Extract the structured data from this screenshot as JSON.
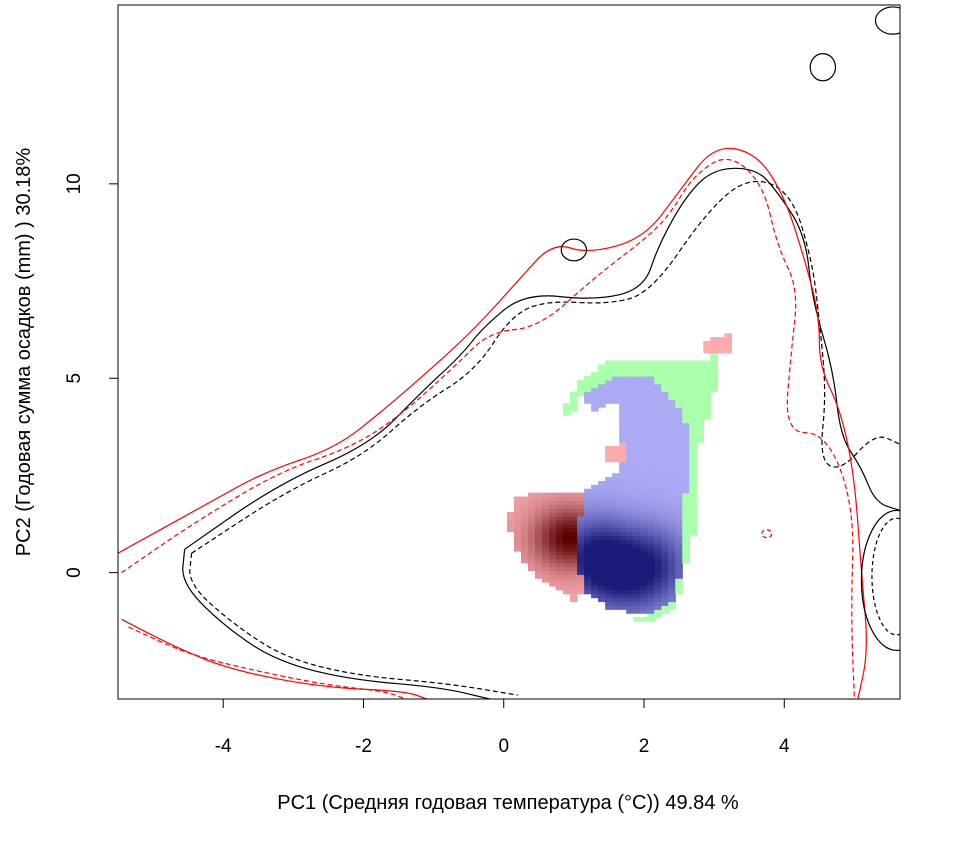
{
  "chart_data": {
    "type": "contour_density",
    "xlabel": "PC1 (Средняя годовая температура (°C)) 49.84 %",
    "ylabel": "PC2 (Годовая сумма осадков  (mm) ) 30.18%",
    "xlim": [
      -5.5,
      5.65
    ],
    "ylim": [
      -3.25,
      14.6
    ],
    "x_ticks": [
      -4,
      -2,
      0,
      2,
      4
    ],
    "y_ticks": [
      0,
      5,
      10
    ],
    "grid": false,
    "legend": "none",
    "colors": {
      "niche_a": "#0000ff",
      "niche_b": "#ff0000",
      "overlap": "#7a0000",
      "unique_a": "#aaffaa",
      "unique_b": "#ffaaaa",
      "envelope_a": "#000000",
      "envelope_b": "#ff0000"
    },
    "blue_density_peaks": [
      {
        "x": 1.25,
        "y": 0.45,
        "weight": 1.0
      },
      {
        "x": 2.2,
        "y": 0.2,
        "weight": 0.8
      },
      {
        "x": 1.7,
        "y": -0.15,
        "weight": 0.6
      }
    ],
    "red_density_peak": {
      "x": 0.95,
      "y": 0.9,
      "weight": 1.0
    },
    "envelopes": [
      {
        "series": "a",
        "style": "solid",
        "points": [
          [
            -4.55,
            0.6
          ],
          [
            -3.2,
            2.3
          ],
          [
            -1.9,
            3.3
          ],
          [
            -1.2,
            4.6
          ],
          [
            -0.6,
            5.6
          ],
          [
            -0.3,
            6.3
          ],
          [
            0.3,
            7.2
          ],
          [
            1.3,
            7.0
          ],
          [
            2.0,
            7.3
          ],
          [
            2.2,
            8.4
          ],
          [
            2.6,
            9.7
          ],
          [
            3.0,
            10.4
          ],
          [
            3.6,
            10.4
          ],
          [
            3.9,
            9.8
          ],
          [
            4.3,
            8.7
          ],
          [
            4.4,
            7.0
          ],
          [
            4.7,
            5.2
          ],
          [
            4.8,
            3.5
          ],
          [
            5.1,
            2.7
          ],
          [
            5.3,
            1.8
          ],
          [
            5.65,
            1.6
          ]
        ]
      },
      {
        "series": "a",
        "style": "solid",
        "points": [
          [
            -4.55,
            0.6
          ],
          [
            -4.6,
            -0.3
          ],
          [
            -3.9,
            -1.5
          ],
          [
            -3.2,
            -2.3
          ],
          [
            -2.2,
            -2.75
          ],
          [
            -0.9,
            -2.95
          ],
          [
            -0.2,
            -3.25
          ]
        ]
      },
      {
        "series": "a",
        "style": "dashed",
        "points": [
          [
            -4.45,
            0.5
          ],
          [
            -3.1,
            2.1
          ],
          [
            -2.0,
            3.0
          ],
          [
            -1.2,
            4.3
          ],
          [
            -0.4,
            5.2
          ],
          [
            0.1,
            6.6
          ],
          [
            0.6,
            7.0
          ],
          [
            1.5,
            6.9
          ],
          [
            2.1,
            7.2
          ],
          [
            2.9,
            9.3
          ],
          [
            3.5,
            10.2
          ],
          [
            4.1,
            9.8
          ],
          [
            4.4,
            8.0
          ],
          [
            4.5,
            6.5
          ],
          [
            4.6,
            4.6
          ],
          [
            4.5,
            2.9
          ],
          [
            4.8,
            2.6
          ],
          [
            5.3,
            3.6
          ],
          [
            5.65,
            3.3
          ]
        ]
      },
      {
        "series": "a",
        "style": "dashed",
        "points": [
          [
            -4.45,
            0.5
          ],
          [
            -4.5,
            -0.3
          ],
          [
            -3.8,
            -1.4
          ],
          [
            -3.1,
            -2.2
          ],
          [
            -2.1,
            -2.65
          ],
          [
            -0.8,
            -2.85
          ],
          [
            0.2,
            -3.15
          ]
        ]
      },
      {
        "series": "b",
        "style": "solid",
        "points": [
          [
            -5.5,
            0.5
          ],
          [
            -4.2,
            1.8
          ],
          [
            -3.4,
            2.6
          ],
          [
            -2.4,
            3.2
          ],
          [
            -1.7,
            4.2
          ],
          [
            -1.0,
            5.3
          ],
          [
            -0.4,
            6.3
          ],
          [
            0.2,
            7.5
          ],
          [
            0.7,
            8.5
          ],
          [
            1.2,
            8.2
          ],
          [
            2.0,
            8.6
          ],
          [
            2.5,
            9.8
          ],
          [
            3.0,
            11.0
          ],
          [
            3.6,
            10.8
          ],
          [
            4.0,
            9.7
          ],
          [
            4.3,
            8.0
          ],
          [
            4.5,
            6.6
          ],
          [
            4.5,
            5.3
          ],
          [
            4.8,
            4.2
          ],
          [
            5.0,
            2.5
          ],
          [
            5.1,
            0.0
          ],
          [
            5.2,
            -2.0
          ],
          [
            5.05,
            -3.25
          ]
        ]
      },
      {
        "series": "b",
        "style": "solid",
        "points": [
          [
            -5.45,
            -1.2
          ],
          [
            -4.7,
            -1.9
          ],
          [
            -3.9,
            -2.5
          ],
          [
            -2.6,
            -2.95
          ],
          [
            -1.4,
            -3.05
          ],
          [
            -1.1,
            -3.25
          ]
        ]
      },
      {
        "series": "b",
        "style": "dashed",
        "points": [
          [
            -5.45,
            0.0
          ],
          [
            -4.4,
            1.3
          ],
          [
            -3.2,
            2.6
          ],
          [
            -2.2,
            3.2
          ],
          [
            -1.5,
            4.0
          ],
          [
            -0.7,
            5.3
          ],
          [
            -0.2,
            6.2
          ],
          [
            0.5,
            6.3
          ],
          [
            1.3,
            7.6
          ],
          [
            2.1,
            8.7
          ],
          [
            2.4,
            9.3
          ],
          [
            2.7,
            10.2
          ],
          [
            3.2,
            10.8
          ],
          [
            3.7,
            10.0
          ],
          [
            3.9,
            8.4
          ],
          [
            4.2,
            7.3
          ],
          [
            4.1,
            5.7
          ],
          [
            4.0,
            3.6
          ],
          [
            4.6,
            3.6
          ],
          [
            5.0,
            1.7
          ],
          [
            4.95,
            -1.0
          ],
          [
            5.0,
            -3.25
          ]
        ]
      },
      {
        "series": "b",
        "style": "dashed",
        "points": [
          [
            -5.35,
            -1.4
          ],
          [
            -4.5,
            -2.1
          ],
          [
            -3.6,
            -2.5
          ],
          [
            -2.5,
            -2.9
          ],
          [
            -1.7,
            -3.05
          ],
          [
            -1.4,
            -3.25
          ]
        ]
      }
    ],
    "islands": [
      {
        "series": "a",
        "style": "solid",
        "x": 4.55,
        "y": 13.0,
        "rx": 0.18,
        "ry": 0.35
      },
      {
        "series": "a",
        "style": "solid",
        "x": 1.0,
        "y": 8.3,
        "rx": 0.18,
        "ry": 0.28
      },
      {
        "series": "a",
        "style": "solid",
        "x": 5.55,
        "y": 14.2,
        "rx": 0.25,
        "ry": 0.35
      },
      {
        "series": "b",
        "style": "dashed",
        "x": 3.75,
        "y": 1.0,
        "rx": 0.07,
        "ry": 0.1
      },
      {
        "series": "a",
        "style": "solid",
        "x": 5.6,
        "y": -0.2,
        "rx": 0.5,
        "ry": 1.8
      },
      {
        "series": "a",
        "style": "dashed",
        "x": 5.6,
        "y": -0.1,
        "rx": 0.35,
        "ry": 1.5
      }
    ]
  }
}
